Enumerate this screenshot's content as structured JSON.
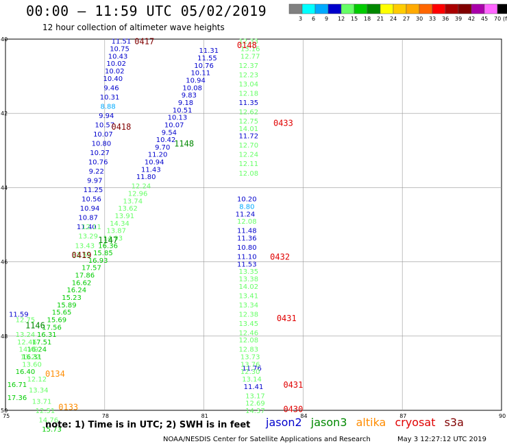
{
  "header": {
    "title": "00:00 – 11:59 UTC 05/02/2019",
    "subtitle": "12 hour collection of altimeter wave heights"
  },
  "note": "note: 1) Time is in UTC; 2) SWH is in feet",
  "footer": {
    "source": "NOAA/NESDIS Center for Satellite Applications and Research",
    "timestamp": "May  3 12:27:12 UTC 2019"
  },
  "satellites": [
    {
      "name": "jason2",
      "color": "#0000cc"
    },
    {
      "name": "jason3",
      "color": "#008800"
    },
    {
      "name": "altika",
      "color": "#ff8c00"
    },
    {
      "name": "cryosat",
      "color": "#e00000"
    },
    {
      "name": "s3a",
      "color": "#800000"
    }
  ],
  "colorbar": {
    "labels": [
      "3",
      "6",
      "9",
      "12",
      "15",
      "18",
      "21",
      "24",
      "27",
      "30",
      "33",
      "36",
      "39",
      "42",
      "45",
      "70",
      "(ft)"
    ],
    "colors": [
      "#808080",
      "#00ffff",
      "#00aaff",
      "#0000cc",
      "#66ff66",
      "#00cc00",
      "#008800",
      "#ffff00",
      "#ffcc00",
      "#ffaa00",
      "#ff6600",
      "#ff0000",
      "#aa0000",
      "#800000",
      "#aa00aa",
      "#ff66ff",
      "#000000"
    ]
  },
  "chart_data": {
    "type": "scatter",
    "xlim": [
      75,
      90
    ],
    "ylim": [
      50,
      40
    ],
    "x_ticks": [
      "75",
      "78",
      "81",
      "84",
      "87",
      "90"
    ],
    "y_ticks": [
      "40",
      "42",
      "44",
      "46",
      "48",
      "50"
    ],
    "grid": true,
    "time_labels": [
      {
        "text": "0417",
        "sat": "s3a",
        "x": 79.2,
        "y": 40.05
      },
      {
        "text": "0418",
        "sat": "s3a",
        "x": 78.5,
        "y": 42.35
      },
      {
        "text": "0419",
        "sat": "s3a",
        "x": 77.3,
        "y": 45.8
      },
      {
        "text": "1148",
        "sat": "jason3",
        "x": 80.4,
        "y": 42.8
      },
      {
        "text": "1147",
        "sat": "jason3",
        "x": 78.1,
        "y": 45.4
      },
      {
        "text": "1146",
        "sat": "jason3",
        "x": 75.9,
        "y": 47.7
      },
      {
        "text": "0134",
        "sat": "altika",
        "x": 76.5,
        "y": 49.0
      },
      {
        "text": "0133",
        "sat": "altika",
        "x": 76.9,
        "y": 49.9
      },
      {
        "text": "0148",
        "sat": "cryosat",
        "x": 82.3,
        "y": 40.15
      },
      {
        "text": "0433",
        "sat": "cryosat",
        "x": 83.4,
        "y": 42.25
      },
      {
        "text": "0432",
        "sat": "cryosat",
        "x": 83.3,
        "y": 45.85
      },
      {
        "text": "0431",
        "sat": "cryosat",
        "x": 83.5,
        "y": 47.5
      },
      {
        "text": "0431",
        "sat": "cryosat",
        "x": 83.7,
        "y": 49.3
      },
      {
        "text": "0430",
        "sat": "cryosat",
        "x": 83.7,
        "y": 49.95
      }
    ],
    "series": [
      {
        "name": "jason2",
        "points": [
          {
            "x": 78.5,
            "y": 40.05,
            "v": 11.51,
            "c": "#0000cc"
          },
          {
            "x": 78.45,
            "y": 40.25,
            "v": 10.75,
            "c": "#0000cc"
          },
          {
            "x": 78.4,
            "y": 40.45,
            "v": 10.43,
            "c": "#0000cc"
          },
          {
            "x": 78.35,
            "y": 40.65,
            "v": 10.02,
            "c": "#0000cc"
          },
          {
            "x": 78.3,
            "y": 40.85,
            "v": 10.02,
            "c": "#0000cc"
          },
          {
            "x": 78.25,
            "y": 41.05,
            "v": 10.4,
            "c": "#0000cc"
          },
          {
            "x": 78.2,
            "y": 41.3,
            "v": 9.46,
            "c": "#0000cc"
          },
          {
            "x": 78.15,
            "y": 41.55,
            "v": 10.31,
            "c": "#0000cc"
          },
          {
            "x": 78.1,
            "y": 41.8,
            "v": 8.88,
            "c": "#00aaff"
          },
          {
            "x": 78.05,
            "y": 42.05,
            "v": 9.94,
            "c": "#0000cc"
          },
          {
            "x": 78.0,
            "y": 42.3,
            "v": 10.57,
            "c": "#0000cc"
          },
          {
            "x": 77.95,
            "y": 42.55,
            "v": 10.07,
            "c": "#0000cc"
          },
          {
            "x": 77.9,
            "y": 42.8,
            "v": 10.8,
            "c": "#0000cc"
          },
          {
            "x": 77.85,
            "y": 43.05,
            "v": 10.27,
            "c": "#0000cc"
          },
          {
            "x": 77.8,
            "y": 43.3,
            "v": 10.76,
            "c": "#0000cc"
          },
          {
            "x": 77.75,
            "y": 43.55,
            "v": 9.22,
            "c": "#0000cc"
          },
          {
            "x": 77.7,
            "y": 43.8,
            "v": 9.97,
            "c": "#0000cc"
          },
          {
            "x": 77.65,
            "y": 44.05,
            "v": 11.25,
            "c": "#0000cc"
          },
          {
            "x": 77.6,
            "y": 44.3,
            "v": 10.56,
            "c": "#0000cc"
          },
          {
            "x": 77.55,
            "y": 44.55,
            "v": 10.94,
            "c": "#0000cc"
          },
          {
            "x": 77.5,
            "y": 44.8,
            "v": 10.87,
            "c": "#0000cc"
          },
          {
            "x": 77.45,
            "y": 45.05,
            "v": 11.4,
            "c": "#0000cc"
          },
          {
            "x": 81.15,
            "y": 40.3,
            "v": 11.31,
            "c": "#0000cc"
          },
          {
            "x": 81.1,
            "y": 40.5,
            "v": 11.55,
            "c": "#0000cc"
          },
          {
            "x": 81.0,
            "y": 40.7,
            "v": 10.76,
            "c": "#0000cc"
          },
          {
            "x": 80.9,
            "y": 40.9,
            "v": 10.11,
            "c": "#0000cc"
          },
          {
            "x": 80.75,
            "y": 41.1,
            "v": 10.94,
            "c": "#0000cc"
          },
          {
            "x": 80.65,
            "y": 41.3,
            "v": 10.08,
            "c": "#0000cc"
          },
          {
            "x": 80.55,
            "y": 41.5,
            "v": 9.83,
            "c": "#0000cc"
          },
          {
            "x": 80.45,
            "y": 41.7,
            "v": 9.18,
            "c": "#0000cc"
          },
          {
            "x": 80.35,
            "y": 41.9,
            "v": 10.51,
            "c": "#0000cc"
          },
          {
            "x": 80.2,
            "y": 42.1,
            "v": 10.13,
            "c": "#0000cc"
          },
          {
            "x": 80.1,
            "y": 42.3,
            "v": 10.07,
            "c": "#0000cc"
          },
          {
            "x": 79.95,
            "y": 42.5,
            "v": 9.54,
            "c": "#0000cc"
          },
          {
            "x": 79.85,
            "y": 42.7,
            "v": 10.42,
            "c": "#0000cc"
          },
          {
            "x": 79.75,
            "y": 42.9,
            "v": 9.7,
            "c": "#0000cc"
          },
          {
            "x": 79.6,
            "y": 43.1,
            "v": 11.2,
            "c": "#0000cc"
          },
          {
            "x": 79.5,
            "y": 43.3,
            "v": 10.94,
            "c": "#0000cc"
          },
          {
            "x": 79.4,
            "y": 43.5,
            "v": 11.43,
            "c": "#0000cc"
          },
          {
            "x": 79.25,
            "y": 43.7,
            "v": 11.8,
            "c": "#0000cc"
          },
          {
            "x": 82.35,
            "y": 42.6,
            "v": 11.72,
            "c": "#0000cc"
          },
          {
            "x": 82.3,
            "y": 44.3,
            "v": 10.2,
            "c": "#0000cc"
          },
          {
            "x": 82.3,
            "y": 44.5,
            "v": 8.8,
            "c": "#00aaff"
          },
          {
            "x": 82.25,
            "y": 44.7,
            "v": 11.24,
            "c": "#0000cc"
          },
          {
            "x": 82.3,
            "y": 45.15,
            "v": 11.48,
            "c": "#0000cc"
          },
          {
            "x": 82.3,
            "y": 45.35,
            "v": 11.36,
            "c": "#0000cc"
          },
          {
            "x": 82.3,
            "y": 45.6,
            "v": 10.8,
            "c": "#0000cc"
          },
          {
            "x": 82.3,
            "y": 45.85,
            "v": 11.1,
            "c": "#0000cc"
          },
          {
            "x": 82.3,
            "y": 46.05,
            "v": 11.53,
            "c": "#0000cc"
          },
          {
            "x": 82.45,
            "y": 48.85,
            "v": 11.76,
            "c": "#0000cc"
          },
          {
            "x": 82.5,
            "y": 49.35,
            "v": 11.41,
            "c": "#0000cc"
          },
          {
            "x": 75.4,
            "y": 47.4,
            "v": 11.59,
            "c": "#0000cc"
          }
        ]
      },
      {
        "name": "jason3",
        "points": [
          {
            "x": 79.1,
            "y": 43.95,
            "v": 12.24,
            "c": "#66ff66"
          },
          {
            "x": 79.0,
            "y": 44.15,
            "v": 12.96,
            "c": "#66ff66"
          },
          {
            "x": 78.85,
            "y": 44.35,
            "v": 13.74,
            "c": "#66ff66"
          },
          {
            "x": 78.7,
            "y": 44.55,
            "v": 13.62,
            "c": "#66ff66"
          },
          {
            "x": 78.6,
            "y": 44.75,
            "v": 13.91,
            "c": "#66ff66"
          },
          {
            "x": 78.45,
            "y": 44.95,
            "v": 14.34,
            "c": "#66ff66"
          },
          {
            "x": 78.35,
            "y": 45.15,
            "v": 13.87,
            "c": "#66ff66"
          },
          {
            "x": 78.25,
            "y": 45.35,
            "v": 14.93,
            "c": "#66ff66"
          },
          {
            "x": 78.1,
            "y": 45.55,
            "v": 16.36,
            "c": "#00cc00"
          },
          {
            "x": 77.95,
            "y": 45.75,
            "v": 15.85,
            "c": "#00cc00"
          },
          {
            "x": 77.8,
            "y": 45.95,
            "v": 16.93,
            "c": "#00cc00"
          },
          {
            "x": 77.6,
            "y": 46.15,
            "v": 17.57,
            "c": "#00cc00"
          },
          {
            "x": 77.4,
            "y": 46.35,
            "v": 17.86,
            "c": "#00cc00"
          },
          {
            "x": 77.3,
            "y": 46.55,
            "v": 16.62,
            "c": "#00cc00"
          },
          {
            "x": 77.15,
            "y": 46.75,
            "v": 16.24,
            "c": "#00cc00"
          },
          {
            "x": 77.0,
            "y": 46.95,
            "v": 15.23,
            "c": "#00cc00"
          },
          {
            "x": 76.85,
            "y": 47.15,
            "v": 15.89,
            "c": "#00cc00"
          },
          {
            "x": 76.7,
            "y": 47.35,
            "v": 15.65,
            "c": "#00cc00"
          },
          {
            "x": 76.55,
            "y": 47.55,
            "v": 15.69,
            "c": "#00cc00"
          },
          {
            "x": 76.4,
            "y": 47.75,
            "v": 17.56,
            "c": "#00cc00"
          },
          {
            "x": 76.25,
            "y": 47.95,
            "v": 16.31,
            "c": "#00cc00"
          },
          {
            "x": 76.1,
            "y": 48.15,
            "v": 17.51,
            "c": "#00cc00"
          },
          {
            "x": 75.95,
            "y": 48.35,
            "v": 16.24,
            "c": "#00cc00"
          },
          {
            "x": 75.8,
            "y": 48.55,
            "v": 16.31,
            "c": "#00cc00"
          },
          {
            "x": 77.6,
            "y": 45.05,
            "v": 12.11,
            "c": "#66ff66"
          },
          {
            "x": 77.5,
            "y": 45.3,
            "v": 13.29,
            "c": "#66ff66"
          },
          {
            "x": 77.4,
            "y": 45.55,
            "v": 13.43,
            "c": "#66ff66"
          },
          {
            "x": 77.3,
            "y": 45.8,
            "v": 13.55,
            "c": "#66ff66"
          },
          {
            "x": 82.35,
            "y": 40.05,
            "v": 12.33,
            "c": "#66ff66"
          },
          {
            "x": 82.4,
            "y": 40.25,
            "v": 13.16,
            "c": "#66ff66"
          },
          {
            "x": 82.4,
            "y": 40.45,
            "v": 12.77,
            "c": "#66ff66"
          },
          {
            "x": 82.35,
            "y": 40.7,
            "v": 12.37,
            "c": "#66ff66"
          },
          {
            "x": 82.35,
            "y": 40.95,
            "v": 12.23,
            "c": "#66ff66"
          },
          {
            "x": 82.35,
            "y": 41.2,
            "v": 13.04,
            "c": "#66ff66"
          },
          {
            "x": 82.35,
            "y": 41.45,
            "v": 12.18,
            "c": "#66ff66"
          },
          {
            "x": 82.35,
            "y": 41.7,
            "v": 11.35,
            "c": "#0000cc"
          },
          {
            "x": 82.35,
            "y": 41.95,
            "v": 12.62,
            "c": "#66ff66"
          },
          {
            "x": 82.35,
            "y": 42.2,
            "v": 12.75,
            "c": "#66ff66"
          },
          {
            "x": 82.35,
            "y": 42.4,
            "v": 14.01,
            "c": "#66ff66"
          },
          {
            "x": 82.35,
            "y": 42.85,
            "v": 12.7,
            "c": "#66ff66"
          },
          {
            "x": 82.35,
            "y": 43.1,
            "v": 12.24,
            "c": "#66ff66"
          },
          {
            "x": 82.35,
            "y": 43.35,
            "v": 12.11,
            "c": "#66ff66"
          },
          {
            "x": 82.35,
            "y": 43.6,
            "v": 12.08,
            "c": "#66ff66"
          },
          {
            "x": 82.3,
            "y": 44.9,
            "v": 12.08,
            "c": "#66ff66"
          },
          {
            "x": 82.35,
            "y": 46.25,
            "v": 13.35,
            "c": "#66ff66"
          },
          {
            "x": 82.35,
            "y": 46.45,
            "v": 13.38,
            "c": "#66ff66"
          },
          {
            "x": 82.35,
            "y": 46.65,
            "v": 14.02,
            "c": "#66ff66"
          },
          {
            "x": 82.35,
            "y": 46.9,
            "v": 13.41,
            "c": "#66ff66"
          },
          {
            "x": 82.35,
            "y": 47.15,
            "v": 13.34,
            "c": "#66ff66"
          },
          {
            "x": 82.35,
            "y": 47.4,
            "v": 12.38,
            "c": "#66ff66"
          },
          {
            "x": 82.35,
            "y": 47.65,
            "v": 13.45,
            "c": "#66ff66"
          },
          {
            "x": 82.35,
            "y": 47.9,
            "v": 12.46,
            "c": "#66ff66"
          },
          {
            "x": 82.35,
            "y": 48.1,
            "v": 12.08,
            "c": "#66ff66"
          },
          {
            "x": 82.35,
            "y": 48.35,
            "v": 12.83,
            "c": "#66ff66"
          },
          {
            "x": 82.4,
            "y": 48.55,
            "v": 13.73,
            "c": "#66ff66"
          },
          {
            "x": 82.4,
            "y": 48.75,
            "v": 13.76,
            "c": "#66ff66"
          },
          {
            "x": 82.4,
            "y": 48.95,
            "v": 12.3,
            "c": "#66ff66"
          },
          {
            "x": 82.45,
            "y": 49.15,
            "v": 13.14,
            "c": "#66ff66"
          },
          {
            "x": 82.55,
            "y": 49.6,
            "v": 13.17,
            "c": "#66ff66"
          },
          {
            "x": 82.55,
            "y": 49.8,
            "v": 12.69,
            "c": "#66ff66"
          },
          {
            "x": 82.55,
            "y": 50.0,
            "v": 14.37,
            "c": "#66ff66"
          }
        ]
      },
      {
        "name": "altika",
        "points": [
          {
            "x": 75.6,
            "y": 47.55,
            "v": 12.75,
            "c": "#66ff66"
          },
          {
            "x": 75.6,
            "y": 47.95,
            "v": 13.24,
            "c": "#66ff66"
          },
          {
            "x": 75.65,
            "y": 48.15,
            "v": 12.46,
            "c": "#66ff66"
          },
          {
            "x": 75.7,
            "y": 48.35,
            "v": 14.49,
            "c": "#66ff66"
          },
          {
            "x": 75.75,
            "y": 48.55,
            "v": 13.22,
            "c": "#66ff66"
          },
          {
            "x": 75.8,
            "y": 48.75,
            "v": 13.6,
            "c": "#66ff66"
          },
          {
            "x": 75.6,
            "y": 48.95,
            "v": 16.4,
            "c": "#00cc00"
          },
          {
            "x": 75.95,
            "y": 49.15,
            "v": 12.12,
            "c": "#66ff66"
          },
          {
            "x": 75.35,
            "y": 49.3,
            "v": 16.71,
            "c": "#00cc00"
          },
          {
            "x": 76.0,
            "y": 49.45,
            "v": 13.34,
            "c": "#66ff66"
          },
          {
            "x": 75.35,
            "y": 49.65,
            "v": 17.36,
            "c": "#00cc00"
          },
          {
            "x": 76.1,
            "y": 49.75,
            "v": 13.71,
            "c": "#66ff66"
          },
          {
            "x": 76.2,
            "y": 50.0,
            "v": 12.51,
            "c": "#66ff66"
          },
          {
            "x": 76.3,
            "y": 50.25,
            "v": 14.76,
            "c": "#66ff66"
          },
          {
            "x": 76.4,
            "y": 50.5,
            "v": 15.73,
            "c": "#00cc00"
          }
        ]
      }
    ]
  }
}
